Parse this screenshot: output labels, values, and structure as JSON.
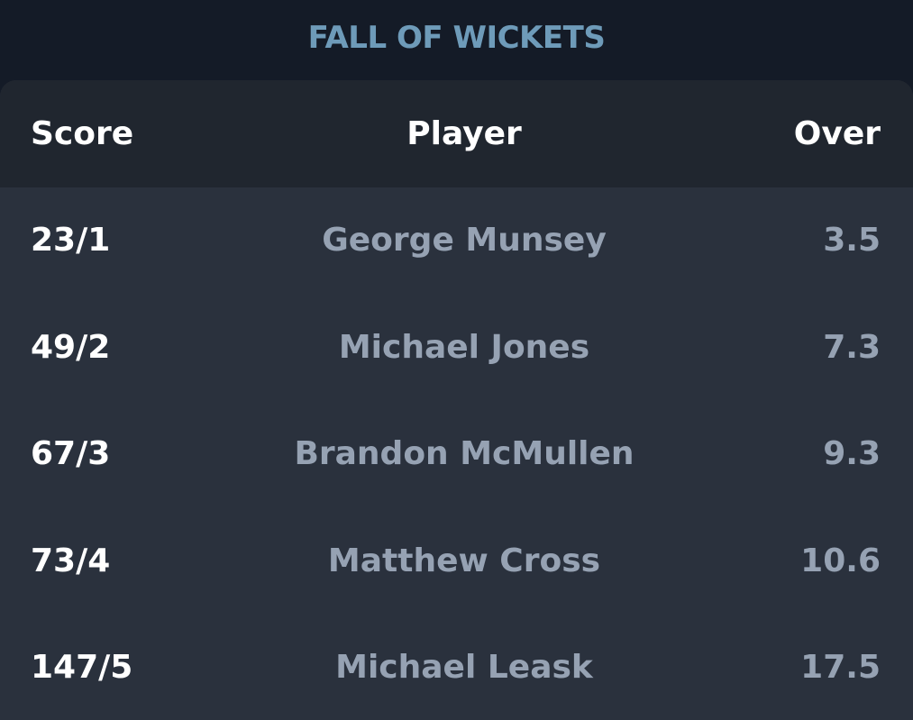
{
  "title": "FALL OF WICKETS",
  "headers": {
    "score": "Score",
    "player": "Player",
    "over": "Over"
  },
  "rows": [
    {
      "score": "23/1",
      "player": "George Munsey",
      "over": "3.5"
    },
    {
      "score": "49/2",
      "player": "Michael Jones",
      "over": "7.3"
    },
    {
      "score": "67/3",
      "player": "Brandon McMullen",
      "over": "9.3"
    },
    {
      "score": "73/4",
      "player": "Matthew Cross",
      "over": "10.6"
    },
    {
      "score": "147/5",
      "player": "Michael Leask",
      "over": "17.5"
    }
  ]
}
